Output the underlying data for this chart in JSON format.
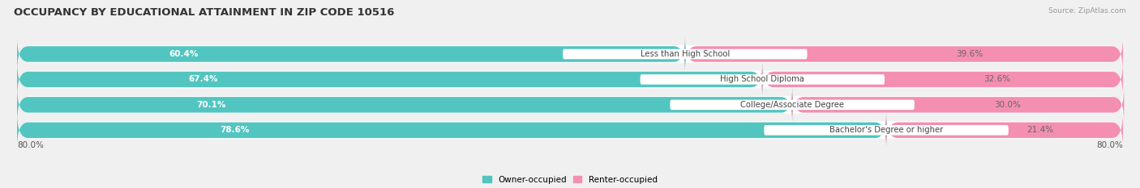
{
  "title": "OCCUPANCY BY EDUCATIONAL ATTAINMENT IN ZIP CODE 10516",
  "source": "Source: ZipAtlas.com",
  "categories": [
    "Less than High School",
    "High School Diploma",
    "College/Associate Degree",
    "Bachelor's Degree or higher"
  ],
  "owner_values": [
    60.4,
    67.4,
    70.1,
    78.6
  ],
  "renter_values": [
    39.6,
    32.6,
    30.0,
    21.4
  ],
  "owner_color": "#52c5c0",
  "renter_color": "#f48fb1",
  "background_color": "#f0f0f0",
  "bar_bg_color": "#e0e0e0",
  "title_fontsize": 9.5,
  "label_fontsize": 7.5,
  "tick_fontsize": 7.5,
  "bar_height": 0.62,
  "legend_owner": "Owner-occupied",
  "legend_renter": "Renter-occupied",
  "x_left_label": "80.0%",
  "x_right_label": "80.0%"
}
